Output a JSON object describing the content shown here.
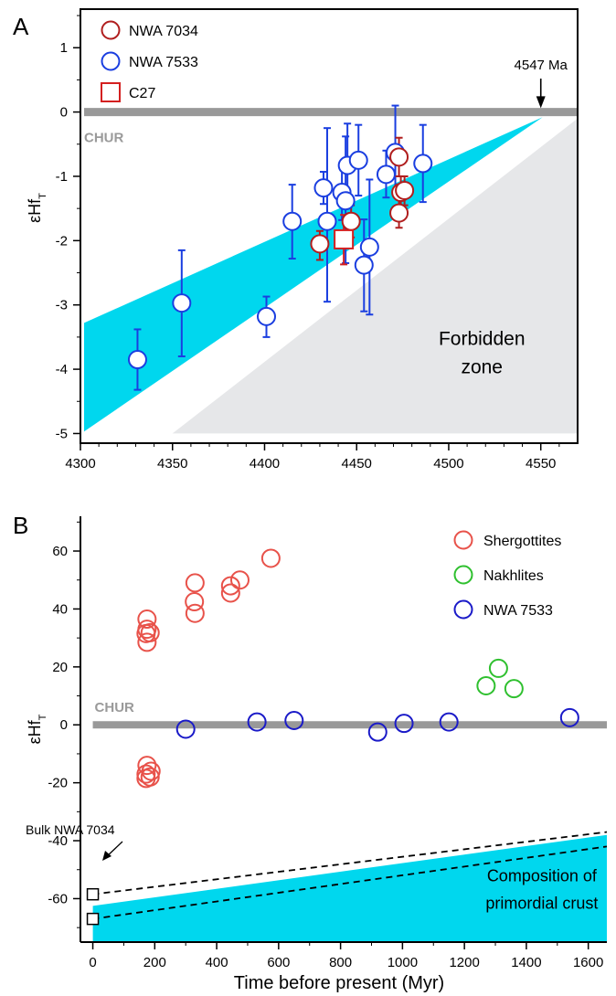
{
  "chart_data": [
    {
      "panel": "A",
      "type": "scatter",
      "ylabel": "εHf",
      "ylabel_sub": "T",
      "xlim": [
        4300,
        4570
      ],
      "ylim": [
        -5.15,
        1.6
      ],
      "xticks": [
        4300,
        4350,
        4400,
        4450,
        4500,
        4550
      ],
      "yticks": [
        1,
        0,
        -1,
        -2,
        -3,
        -4,
        -5
      ],
      "chur": {
        "label": "CHUR",
        "y": 0
      },
      "annotation_age": {
        "text": "4547 Ma",
        "x": 4551
      },
      "forbidden_zone": {
        "label_lines": [
          "Forbidden",
          "zone"
        ],
        "polygon": [
          [
            4350,
            -5
          ],
          [
            4570,
            -5
          ],
          [
            4570,
            -0.1
          ]
        ]
      },
      "reservoir_band": {
        "polygon": [
          [
            4302,
            -3.28
          ],
          [
            4551,
            -0.08
          ],
          [
            4302,
            -4.97
          ]
        ]
      },
      "series": [
        {
          "name": "NWA 7034",
          "marker": "circle",
          "color": "#b01e1e",
          "points": [
            {
              "x": 4430,
              "y": -2.05,
              "elo": -2.3,
              "ehi": -1.85
            },
            {
              "x": 4447,
              "y": -1.7,
              "elo": -1.95,
              "ehi": -1.45
            },
            {
              "x": 4473,
              "y": -0.7,
              "elo": -1.0,
              "ehi": -0.4
            },
            {
              "x": 4474,
              "y": -1.25,
              "elo": -1.5,
              "ehi": -1.0
            },
            {
              "x": 4476,
              "y": -1.22,
              "elo": -1.45,
              "ehi": -1.0
            },
            {
              "x": 4473,
              "y": -1.57,
              "elo": -1.8,
              "ehi": -1.35
            }
          ]
        },
        {
          "name": "NWA 7533",
          "marker": "circle",
          "color": "#1a3ee0",
          "points": [
            {
              "x": 4331,
              "y": -3.85,
              "elo": -4.32,
              "ehi": -3.38
            },
            {
              "x": 4355,
              "y": -2.97,
              "elo": -3.8,
              "ehi": -2.15
            },
            {
              "x": 4401,
              "y": -3.18,
              "elo": -3.5,
              "ehi": -2.87
            },
            {
              "x": 4415,
              "y": -1.7,
              "elo": -2.28,
              "ehi": -1.13
            },
            {
              "x": 4432,
              "y": -1.18,
              "elo": -1.43,
              "ehi": -0.93
            },
            {
              "x": 4434,
              "y": -1.7,
              "elo": -2.95,
              "ehi": -0.25
            },
            {
              "x": 4442,
              "y": -1.25,
              "elo": -1.68,
              "ehi": -0.83
            },
            {
              "x": 4444,
              "y": -1.38,
              "elo": -2.35,
              "ehi": -0.38
            },
            {
              "x": 4445,
              "y": -0.83,
              "elo": -1.38,
              "ehi": -0.18
            },
            {
              "x": 4451,
              "y": -0.75,
              "elo": -1.3,
              "ehi": -0.2
            },
            {
              "x": 4454,
              "y": -2.38,
              "elo": -3.1,
              "ehi": -1.67
            },
            {
              "x": 4457,
              "y": -2.1,
              "elo": -3.15,
              "ehi": -1.05
            },
            {
              "x": 4466,
              "y": -0.97,
              "elo": -1.33,
              "ehi": -0.6
            },
            {
              "x": 4471,
              "y": -0.63,
              "elo": -1.25,
              "ehi": 0.1
            },
            {
              "x": 4486,
              "y": -0.8,
              "elo": -1.4,
              "ehi": -0.2
            }
          ]
        },
        {
          "name": "C27",
          "marker": "square",
          "color": "#d42020",
          "points": [
            {
              "x": 4443,
              "y": -1.98,
              "elo": -2.37,
              "ehi": -1.6
            }
          ]
        }
      ]
    },
    {
      "panel": "B",
      "type": "scatter",
      "xlabel": "Time before present (Myr)",
      "ylabel": "εHf",
      "ylabel_sub": "T",
      "xlim": [
        -40,
        1660
      ],
      "ylim": [
        -75,
        72
      ],
      "xticks": [
        0,
        200,
        400,
        600,
        800,
        1000,
        1200,
        1400,
        1600
      ],
      "yticks": [
        60,
        40,
        20,
        0,
        -20,
        -40,
        -60
      ],
      "chur": {
        "label": "CHUR",
        "y": 0
      },
      "annotation_bulk": {
        "text": "Bulk NWA 7034"
      },
      "crust_band": {
        "label_lines": [
          "Composition of",
          "primordial crust"
        ],
        "polygon": [
          [
            0,
            -62.5
          ],
          [
            1660,
            -38
          ],
          [
            1660,
            -75
          ],
          [
            0,
            -75
          ]
        ]
      },
      "bulk_lines": [
        {
          "x": [
            0,
            1660
          ],
          "y": [
            -58.5,
            -37
          ],
          "square_x": 0
        },
        {
          "x": [
            0,
            1660
          ],
          "y": [
            -67,
            -42
          ],
          "square_x": 0
        }
      ],
      "series": [
        {
          "name": "Shergottites",
          "marker": "open-circle",
          "color": "#e8524a",
          "points": [
            {
              "x": 175,
              "y": 36.5
            },
            {
              "x": 175,
              "y": 33
            },
            {
              "x": 172,
              "y": 31.5
            },
            {
              "x": 175,
              "y": 28.5
            },
            {
              "x": 185,
              "y": 31.8
            },
            {
              "x": 330,
              "y": 49
            },
            {
              "x": 328,
              "y": 42.5
            },
            {
              "x": 330,
              "y": 38.5
            },
            {
              "x": 445,
              "y": 48
            },
            {
              "x": 445,
              "y": 45.5
            },
            {
              "x": 475,
              "y": 50
            },
            {
              "x": 575,
              "y": 57.5
            },
            {
              "x": 175,
              "y": -14
            },
            {
              "x": 172,
              "y": -17
            },
            {
              "x": 188,
              "y": -16
            },
            {
              "x": 172,
              "y": -18.5
            },
            {
              "x": 185,
              "y": -18
            }
          ]
        },
        {
          "name": "Nakhlites",
          "marker": "open-circle",
          "color": "#2fc02f",
          "points": [
            {
              "x": 1270,
              "y": 13.5
            },
            {
              "x": 1310,
              "y": 19.5
            },
            {
              "x": 1360,
              "y": 12.5
            }
          ]
        },
        {
          "name": "NWA 7533",
          "marker": "open-circle",
          "color": "#1a1ac8",
          "points": [
            {
              "x": 300,
              "y": -1.5
            },
            {
              "x": 530,
              "y": 1
            },
            {
              "x": 650,
              "y": 1.5
            },
            {
              "x": 920,
              "y": -2.5
            },
            {
              "x": 1005,
              "y": 0.5
            },
            {
              "x": 1150,
              "y": 1
            },
            {
              "x": 1540,
              "y": 2.5
            }
          ]
        }
      ]
    }
  ]
}
